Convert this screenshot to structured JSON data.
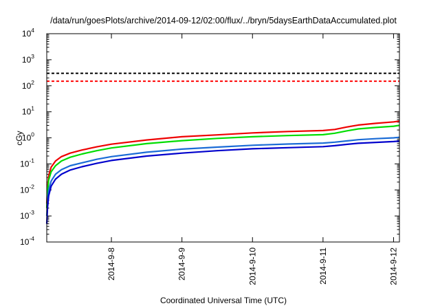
{
  "chart_data": {
    "type": "line",
    "title": "/data/run/goesPlots/archive/2014-09-12/02:00/flux/../bryn/5daysEarthDataAccumulated.plot",
    "xlabel": "Coordinated Universal Time (UTC)",
    "ylabel": "cGy",
    "yscale": "log",
    "ylim": [
      0.0001,
      10000
    ],
    "xlim": [
      "2014-09-07T02:00",
      "2014-09-12T02:00"
    ],
    "x_ticks": [
      {
        "x": "2014-09-08T00:00",
        "label": "2014-9-8"
      },
      {
        "x": "2014-09-09T00:00",
        "label": "2014-9-9"
      },
      {
        "x": "2014-09-10T00:00",
        "label": "2014-9-10"
      },
      {
        "x": "2014-09-11T00:00",
        "label": "2014-9-11"
      },
      {
        "x": "2014-09-12T00:00",
        "label": "2014-9-12"
      }
    ],
    "y_ticks": [
      {
        "value": 0.0001,
        "base": "10",
        "exp": "-4"
      },
      {
        "value": 0.001,
        "base": "10",
        "exp": "-3"
      },
      {
        "value": 0.01,
        "base": "10",
        "exp": "-2"
      },
      {
        "value": 0.1,
        "base": "10",
        "exp": "-1"
      },
      {
        "value": 1,
        "base": "10",
        "exp": "0"
      },
      {
        "value": 10,
        "base": "10",
        "exp": "1"
      },
      {
        "value": 100,
        "base": "10",
        "exp": "2"
      },
      {
        "value": 1000,
        "base": "10",
        "exp": "3"
      },
      {
        "value": 10000,
        "base": "10",
        "exp": "4"
      }
    ],
    "grid": false,
    "thresholds": [
      {
        "value": 300,
        "color": "#000000",
        "style": "dashed"
      },
      {
        "value": 150,
        "color": "#ff0000",
        "style": "dashed"
      }
    ],
    "series": [
      {
        "color": "#ee0000",
        "x": [
          "2014-09-07T02:00",
          "2014-09-07T02:15",
          "2014-09-07T02:40",
          "2014-09-07T03:30",
          "2014-09-07T05:00",
          "2014-09-07T07:00",
          "2014-09-07T10:00",
          "2014-09-07T14:00",
          "2014-09-07T19:00",
          "2014-09-08T00:00",
          "2014-09-08T12:00",
          "2014-09-09T00:00",
          "2014-09-09T12:00",
          "2014-09-10T00:00",
          "2014-09-10T12:00",
          "2014-09-11T00:00",
          "2014-09-11T04:00",
          "2014-09-11T08:00",
          "2014-09-11T12:00",
          "2014-09-11T18:00",
          "2014-09-12T00:00",
          "2014-09-12T02:00"
        ],
        "y": [
          0.003,
          0.012,
          0.035,
          0.075,
          0.13,
          0.19,
          0.26,
          0.34,
          0.45,
          0.57,
          0.83,
          1.1,
          1.3,
          1.55,
          1.75,
          1.9,
          2.1,
          2.6,
          3.1,
          3.6,
          4.1,
          4.4
        ]
      },
      {
        "color": "#00dd00",
        "x": [
          "2014-09-07T02:00",
          "2014-09-07T02:15",
          "2014-09-07T02:40",
          "2014-09-07T03:30",
          "2014-09-07T05:00",
          "2014-09-07T07:00",
          "2014-09-07T10:00",
          "2014-09-07T14:00",
          "2014-09-07T19:00",
          "2014-09-08T00:00",
          "2014-09-08T12:00",
          "2014-09-09T00:00",
          "2014-09-09T12:00",
          "2014-09-10T00:00",
          "2014-09-10T12:00",
          "2014-09-11T00:00",
          "2014-09-11T04:00",
          "2014-09-11T08:00",
          "2014-09-11T12:00",
          "2014-09-11T18:00",
          "2014-09-12T00:00",
          "2014-09-12T02:00"
        ],
        "y": [
          0.002,
          0.008,
          0.024,
          0.05,
          0.085,
          0.13,
          0.18,
          0.24,
          0.32,
          0.41,
          0.6,
          0.78,
          0.95,
          1.1,
          1.22,
          1.32,
          1.5,
          1.85,
          2.2,
          2.5,
          2.8,
          3.0
        ]
      },
      {
        "color": "#1a6bd6",
        "x": [
          "2014-09-07T02:00",
          "2014-09-07T02:15",
          "2014-09-07T02:40",
          "2014-09-07T03:30",
          "2014-09-07T05:00",
          "2014-09-07T07:00",
          "2014-09-07T10:00",
          "2014-09-07T14:00",
          "2014-09-07T19:00",
          "2014-09-08T00:00",
          "2014-09-08T12:00",
          "2014-09-09T00:00",
          "2014-09-09T12:00",
          "2014-09-10T00:00",
          "2014-09-10T12:00",
          "2014-09-11T00:00",
          "2014-09-11T04:00",
          "2014-09-11T08:00",
          "2014-09-11T12:00",
          "2014-09-11T18:00",
          "2014-09-12T00:00",
          "2014-09-12T02:00"
        ],
        "y": [
          0.001,
          0.0035,
          0.01,
          0.022,
          0.04,
          0.06,
          0.085,
          0.11,
          0.15,
          0.19,
          0.28,
          0.37,
          0.44,
          0.52,
          0.58,
          0.63,
          0.68,
          0.76,
          0.85,
          0.93,
          1.0,
          1.05
        ]
      },
      {
        "color": "#0000cc",
        "x": [
          "2014-09-07T02:00",
          "2014-09-07T02:15",
          "2014-09-07T02:40",
          "2014-09-07T03:30",
          "2014-09-07T05:00",
          "2014-09-07T07:00",
          "2014-09-07T10:00",
          "2014-09-07T14:00",
          "2014-09-07T19:00",
          "2014-09-08T00:00",
          "2014-09-08T12:00",
          "2014-09-09T00:00",
          "2014-09-09T12:00",
          "2014-09-10T00:00",
          "2014-09-10T12:00",
          "2014-09-11T00:00",
          "2014-09-11T04:00",
          "2014-09-11T08:00",
          "2014-09-11T12:00",
          "2014-09-11T18:00",
          "2014-09-12T00:00",
          "2014-09-12T02:00"
        ],
        "y": [
          0.0005,
          0.002,
          0.006,
          0.014,
          0.026,
          0.04,
          0.058,
          0.078,
          0.105,
          0.135,
          0.2,
          0.26,
          0.32,
          0.38,
          0.42,
          0.46,
          0.5,
          0.56,
          0.62,
          0.67,
          0.72,
          0.75
        ]
      }
    ]
  }
}
